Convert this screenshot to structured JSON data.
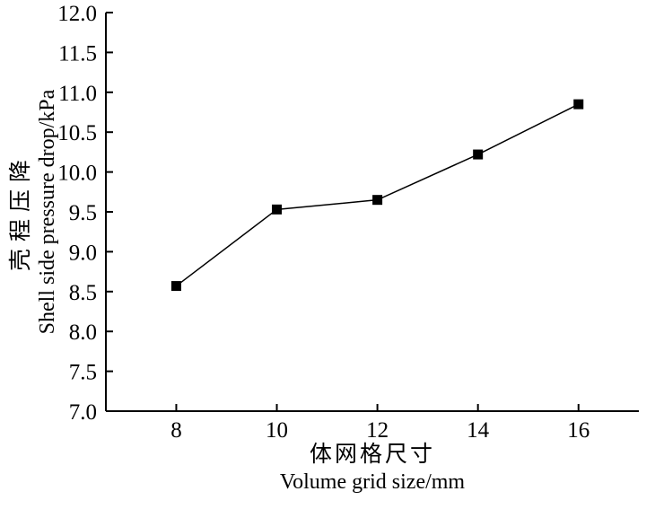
{
  "chart_data": {
    "type": "line",
    "series": [
      {
        "name": "Shell side pressure drop",
        "x": [
          8,
          10,
          12,
          14,
          16
        ],
        "y": [
          8.57,
          9.53,
          9.65,
          10.22,
          10.85
        ]
      }
    ],
    "xlabel_cn": "体网格尺寸",
    "xlabel_en": "Volume grid size/mm",
    "ylabel_cn": "壳程压降",
    "ylabel_en": "Shell side pressure drop/kPa",
    "xlim": [
      6.6,
      17.2
    ],
    "ylim": [
      7.0,
      12.0
    ],
    "xticks": [
      8,
      10,
      12,
      14,
      16
    ],
    "ytick_step": 0.5,
    "ytick_decimals": 1,
    "line_color": "#000000",
    "marker": "square",
    "marker_size": 11,
    "marker_color": "#000000",
    "axis_color": "#000000",
    "background": "#ffffff",
    "grid": false,
    "legend": "none"
  }
}
